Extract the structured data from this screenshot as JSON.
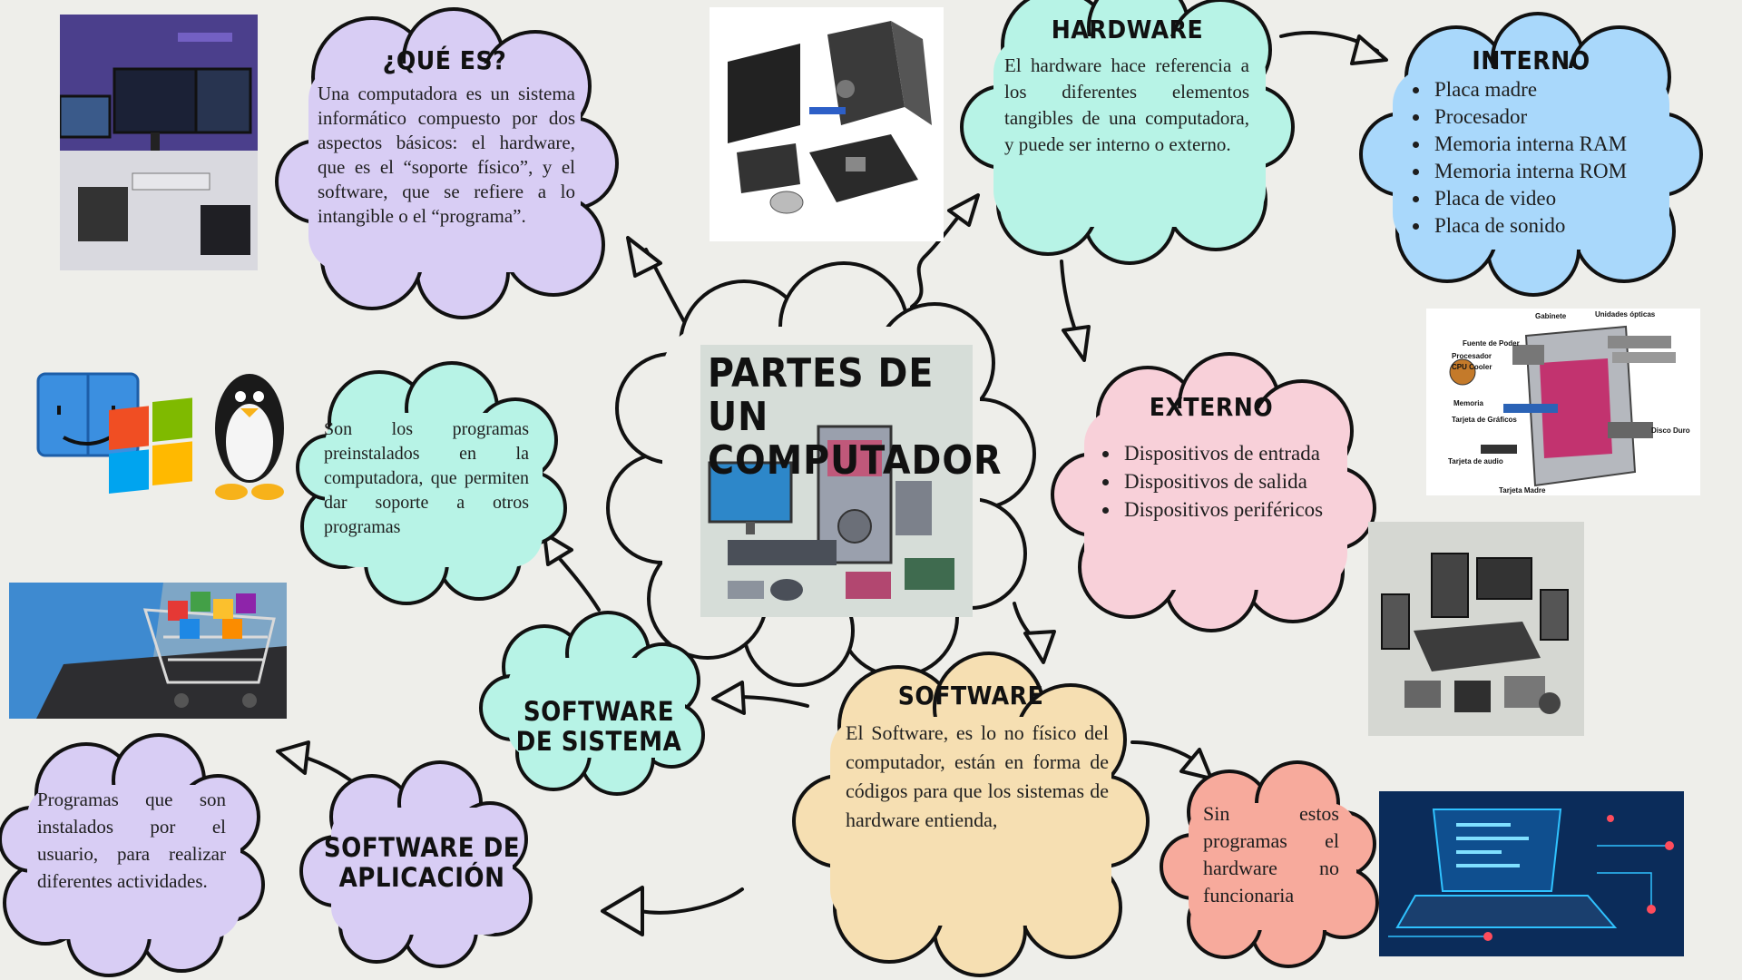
{
  "center": {
    "title": "PARTES DE UN COMPUTADOR"
  },
  "que_es": {
    "title": "¿QUÉ ES?",
    "text": "Una computadora es un sistema informático compuesto por dos aspectos básicos: el hardware, que es el “soporte físico”, y el software, que se refiere a lo intangible o el “programa”."
  },
  "hardware": {
    "title": "HARDWARE",
    "text": "El hardware hace referencia a los diferentes elementos tangibles de una computadora, y puede ser interno o externo."
  },
  "interno": {
    "title": "INTERNO",
    "items": [
      "Placa madre",
      "Procesador",
      "Memoria interna RAM",
      "Memoria interna ROM",
      "Placa de video",
      "Placa de sonido"
    ]
  },
  "externo": {
    "title": "EXTERNO",
    "items": [
      "Dispositivos de entrada",
      "Dispositivos de salida",
      "Dispositivos periféricos"
    ]
  },
  "software": {
    "title": "SOFTWARE",
    "text": "El Software, es lo no físico del computador, están en forma de códigos para que los sistemas de hardware entienda,"
  },
  "software_sistema": {
    "title": "SOFTWARE DE SISTEMA",
    "text": "Son los programas preinstalados en la computadora, que permiten dar soporte a otros programas"
  },
  "software_aplicacion": {
    "title": "SOFTWARE DE APLICACIÓN",
    "text": "Programas que son instalados por el usuario, para realizar diferentes actividades."
  },
  "sin_programas": {
    "text": "Sin estos programas el hardware no funcionaria"
  },
  "diagram_labels": [
    "Gabinete",
    "Unidades ópticas",
    "Fuente de Poder",
    "Procesador",
    "CPU Cooler",
    "Memoria",
    "Tarjeta de Gráficos",
    "Disco Duro",
    "Tarjeta de audio",
    "Tarjeta Madre"
  ],
  "colors": {
    "background": "#eeeeea",
    "purple": "#d8cdf4",
    "mint": "#b7f3e6",
    "blue": "#a9d8fb",
    "pink": "#f8d0d9",
    "peach": "#f6dfb2",
    "salmon": "#f7aa9c",
    "outline": "#111111"
  }
}
